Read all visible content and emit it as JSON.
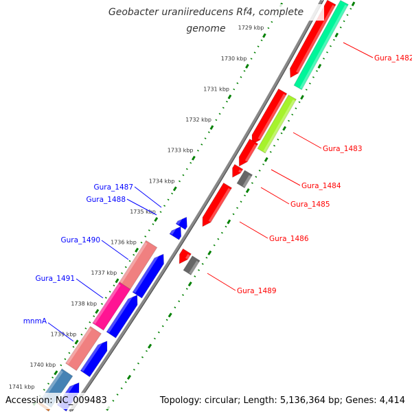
{
  "title": "Geobacter uraniireducens Rf4, complete genome",
  "accession": "Accession: NC_009483",
  "topology": "Topology: circular; Length: 5,136,364 bp; Genes: 4,414",
  "colors": {
    "backbone": "#888888",
    "ticks": "#008000",
    "tick_label": "#333333",
    "reverse_label": "#ff0000",
    "forward_label": "#0000ff"
  },
  "tick_labels": [
    {
      "kbp": 1729,
      "text": "1729 kbp"
    },
    {
      "kbp": 1730,
      "text": "1730 kbp"
    },
    {
      "kbp": 1731,
      "text": "1731 kbp"
    },
    {
      "kbp": 1732,
      "text": "1732 kbp"
    },
    {
      "kbp": 1733,
      "text": "1733 kbp"
    },
    {
      "kbp": 1734,
      "text": "1734 kbp"
    },
    {
      "kbp": 1735,
      "text": "1735 kbp"
    },
    {
      "kbp": 1736,
      "text": "1736 kbp"
    },
    {
      "kbp": 1737,
      "text": "1737 kbp"
    },
    {
      "kbp": 1738,
      "text": "1738 kbp"
    },
    {
      "kbp": 1739,
      "text": "1739 kbp"
    },
    {
      "kbp": 1740,
      "text": "1740 kbp"
    },
    {
      "kbp": 1741,
      "text": "1741 kbp"
    }
  ],
  "features": [
    {
      "start": 1727.0,
      "end": 1729.74,
      "strand": "+",
      "track": "r1",
      "color": "#ff0000"
    },
    {
      "start": 1730.18,
      "end": 1731.89,
      "strand": "+",
      "track": "r1",
      "color": "#ff0000"
    },
    {
      "start": 1731.8,
      "end": 1732.6,
      "strand": "+",
      "track": "r1",
      "color": "#ff0000"
    },
    {
      "start": 1732.62,
      "end": 1732.96,
      "strand": "+",
      "track": "r1",
      "color": "#ff0000"
    },
    {
      "start": 1733.22,
      "end": 1734.55,
      "strand": "+",
      "track": "r1",
      "color": "#ff0000"
    },
    {
      "start": 1735.35,
      "end": 1735.75,
      "strand": "+",
      "track": "r1",
      "color": "#ff0000"
    },
    {
      "start": 1727.0,
      "end": 1729.88,
      "strand": "",
      "track": "r2",
      "color": "#00f59a"
    },
    {
      "start": 1730.19,
      "end": 1731.92,
      "strand": "",
      "track": "r2",
      "color": "#a6f22c"
    },
    {
      "start": 1732.62,
      "end": 1733.04,
      "strand": "",
      "track": "r2",
      "color": "#666666"
    },
    {
      "start": 1735.38,
      "end": 1735.84,
      "strand": "",
      "track": "r2",
      "color": "#666666"
    },
    {
      "start": 1734.56,
      "end": 1734.87,
      "strand": "-",
      "track": "l1",
      "color": "#0000ff"
    },
    {
      "start": 1734.87,
      "end": 1735.2,
      "strand": "-",
      "track": "l1",
      "color": "#0000ff"
    },
    {
      "start": 1735.76,
      "end": 1737.09,
      "strand": "-",
      "track": "l1",
      "color": "#0000ff"
    },
    {
      "start": 1737.09,
      "end": 1738.38,
      "strand": "-",
      "track": "l1",
      "color": "#0000ff"
    },
    {
      "start": 1738.58,
      "end": 1739.64,
      "strand": "-",
      "track": "l1",
      "color": "#0000ff"
    },
    {
      "start": 1739.93,
      "end": 1741.4,
      "strand": "-",
      "track": "l1",
      "color": "#0000ff"
    },
    {
      "start": 1735.7,
      "end": 1737.06,
      "strand": "",
      "track": "l2",
      "color": "#f08080"
    },
    {
      "start": 1737.06,
      "end": 1738.39,
      "strand": "",
      "track": "l2",
      "color": "#ff1493"
    },
    {
      "start": 1738.5,
      "end": 1739.7,
      "strand": "",
      "track": "l2",
      "color": "#f08080"
    },
    {
      "start": 1739.88,
      "end": 1740.9,
      "strand": "",
      "track": "l2",
      "color": "#4682b4"
    },
    {
      "start": 1740.95,
      "end": 1741.4,
      "strand": "",
      "track": "l2",
      "color": "#d2691e"
    }
  ],
  "gene_labels": [
    {
      "text": "Gura_1482",
      "side": "reverse"
    },
    {
      "text": "Gura_1483",
      "side": "reverse"
    },
    {
      "text": "Gura_1484",
      "side": "reverse"
    },
    {
      "text": "Gura_1485",
      "side": "reverse"
    },
    {
      "text": "Gura_1486",
      "side": "reverse"
    },
    {
      "text": "Gura_1489",
      "side": "reverse"
    },
    {
      "text": "Gura_1487",
      "side": "forward"
    },
    {
      "text": "Gura_1488",
      "side": "forward"
    },
    {
      "text": "Gura_1490",
      "side": "forward"
    },
    {
      "text": "Gura_1491",
      "side": "forward"
    },
    {
      "text": "mnmA",
      "side": "forward"
    }
  ]
}
